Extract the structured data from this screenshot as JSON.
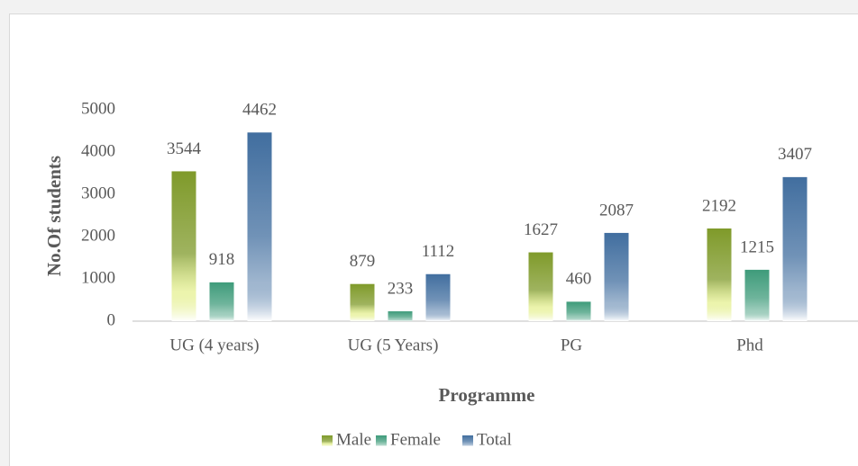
{
  "chart_data": {
    "type": "bar",
    "categories": [
      "UG (4 years)",
      "UG (5 Years)",
      "PG",
      "Phd"
    ],
    "series": [
      {
        "name": "Male",
        "color": "#7f9a2a",
        "values": [
          3544,
          879,
          1627,
          2192
        ]
      },
      {
        "name": "Female",
        "color": "#3e9b7a",
        "values": [
          918,
          233,
          460,
          1215
        ]
      },
      {
        "name": "Total",
        "color": "#416e9f",
        "values": [
          4462,
          1112,
          2087,
          3407
        ]
      }
    ],
    "xlabel": "Programme",
    "ylabel": "No.Of students",
    "ylim": [
      0,
      5000
    ],
    "yticks": [
      0,
      1000,
      2000,
      3000,
      4000,
      5000
    ],
    "grid": false,
    "legend": "bottom"
  }
}
